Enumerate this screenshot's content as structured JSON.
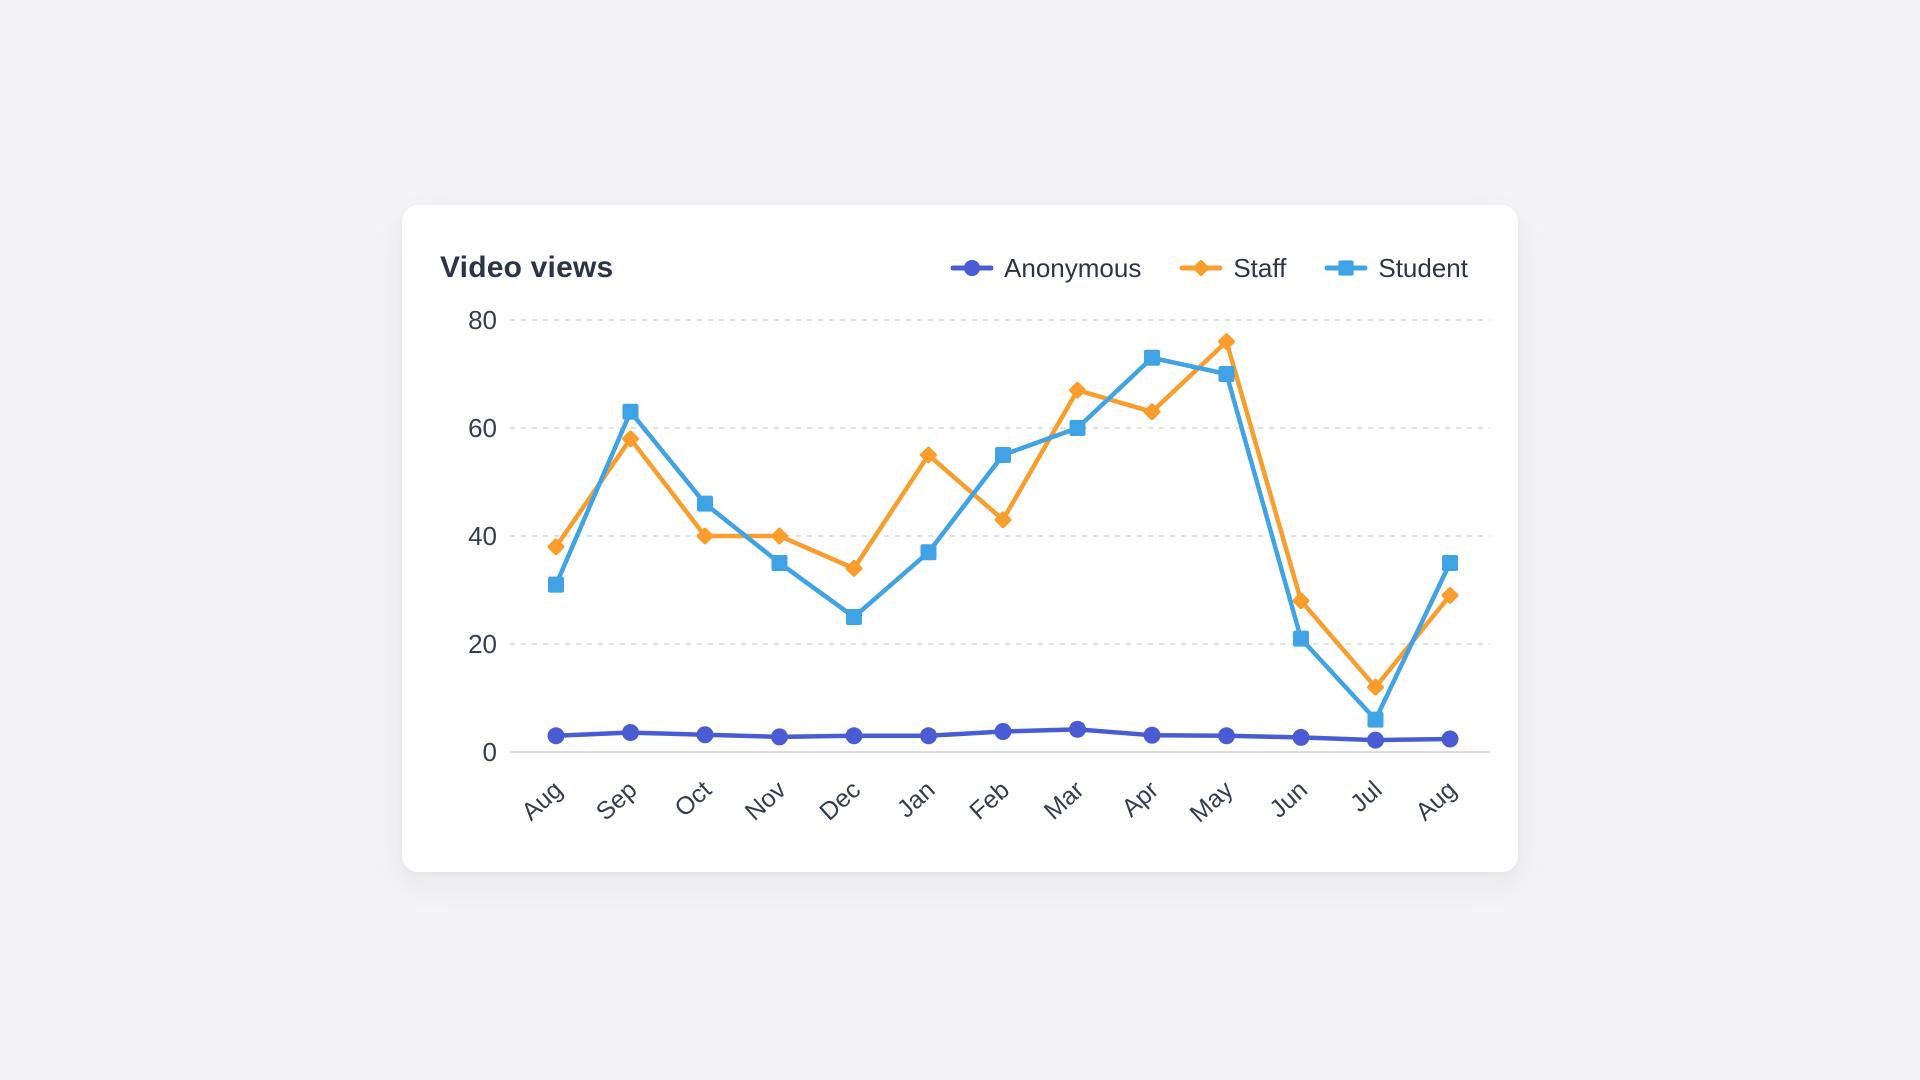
{
  "card": {
    "title": "Video views"
  },
  "colors": {
    "page_background": "#f4f4f6",
    "card_background": "#ffffff",
    "text_dark": "#2c3547",
    "grid_dashed": "#d7d9dd",
    "grid_baseline": "#cfd2d7",
    "anonymous": "#4a5cd4",
    "staff": "#f99e2d",
    "student": "#3fa3e6"
  },
  "chart_data": {
    "type": "line",
    "title": "Video views",
    "categories": [
      "Aug",
      "Sep",
      "Oct",
      "Nov",
      "Dec",
      "Jan",
      "Feb",
      "Mar",
      "Apr",
      "May",
      "Jun",
      "Jul",
      "Aug"
    ],
    "series": [
      {
        "name": "Anonymous",
        "color": "#4a5cd4",
        "marker": "circle",
        "values": [
          3,
          3.6,
          3.2,
          2.8,
          3,
          3,
          3.8,
          4.2,
          3.1,
          3,
          2.7,
          2.2,
          2.4
        ]
      },
      {
        "name": "Staff",
        "color": "#f99e2d",
        "marker": "diamond",
        "values": [
          38,
          58,
          40,
          40,
          34,
          55,
          43,
          67,
          63,
          76,
          28,
          12,
          29
        ]
      },
      {
        "name": "Student",
        "color": "#3fa3e6",
        "marker": "square",
        "values": [
          31,
          63,
          46,
          35,
          25,
          37,
          55,
          60,
          73,
          70,
          21,
          6,
          35
        ]
      }
    ],
    "xlabel": "",
    "ylabel": "",
    "y_ticks": [
      0,
      20,
      40,
      60,
      80
    ],
    "ylim": [
      0,
      80
    ],
    "grid": "horizontal-dashed",
    "legend_position": "top-right",
    "x_label_rotation": -42
  }
}
